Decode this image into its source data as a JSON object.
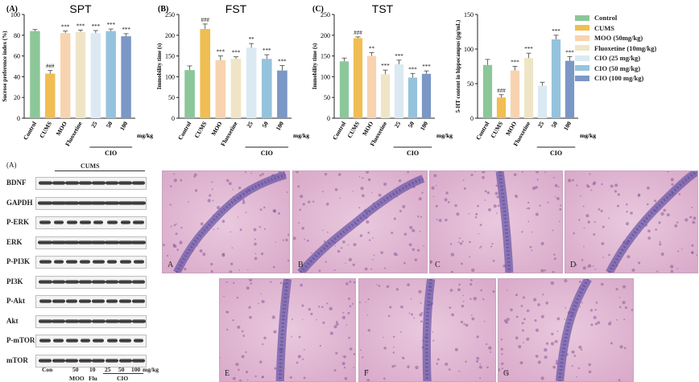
{
  "colors": {
    "Control": "#8cc79a",
    "CUMS": "#f0be52",
    "MOO": "#f8d3b0",
    "Fluoxetine": "#efe5c6",
    "CIO25": "#dbe9f3",
    "CIO50": "#95c3dd",
    "CIO100": "#7b97c6"
  },
  "legend": [
    {
      "label": "Control",
      "key": "Control"
    },
    {
      "label": "CUMS",
      "key": "CUMS"
    },
    {
      "label": "MOO (50mg/kg)",
      "key": "MOO"
    },
    {
      "label": "Fluoxetine (10mg/kg)",
      "key": "Fluoxetine"
    },
    {
      "label": "CIO (25 mg/kg)",
      "key": "CIO25"
    },
    {
      "label": "CIO (50 mg/kg)",
      "key": "CIO50"
    },
    {
      "label": "CIO (100 mg/kg)",
      "key": "CIO100"
    }
  ],
  "chart_data": [
    {
      "type": "bar",
      "panel": "(A)",
      "title": "SPT",
      "ylabel": "Sucrose preference index (%)",
      "ylim": [
        0,
        100
      ],
      "yticks": [
        0,
        20,
        40,
        60,
        80,
        100
      ],
      "categories": [
        "Control",
        "CUMS",
        "MOO",
        "Fluoxetine",
        "25",
        "50",
        "100"
      ],
      "values": [
        84,
        43,
        82,
        83,
        82,
        84,
        79
      ],
      "errors": [
        1.5,
        3,
        2,
        2,
        2.5,
        2,
        2.5
      ],
      "annotations": [
        "",
        "###",
        "***",
        "***",
        "***",
        "***",
        "***"
      ],
      "group_label": "CIO",
      "unit_label": "mg/kg"
    },
    {
      "type": "bar",
      "panel": "(B)",
      "title": "FST",
      "ylabel": "Immobility time (s)",
      "ylim": [
        0,
        250
      ],
      "yticks": [
        0,
        50,
        100,
        150,
        200,
        250
      ],
      "categories": [
        "Control",
        "CUMS",
        "MOO",
        "Fluoxetine",
        "25",
        "50",
        "100"
      ],
      "values": [
        116,
        215,
        140,
        143,
        170,
        143,
        115
      ],
      "errors": [
        10,
        12,
        10,
        5,
        10,
        10,
        12
      ],
      "annotations": [
        "",
        "###",
        "***",
        "***",
        "**",
        "***",
        "***"
      ],
      "group_label": "CIO",
      "unit_label": "mg/kg"
    },
    {
      "type": "bar",
      "panel": "(C)",
      "title": "TST",
      "ylabel": "Immobility time (s)",
      "ylim": [
        0,
        250
      ],
      "yticks": [
        0,
        50,
        100,
        150,
        200,
        250
      ],
      "categories": [
        "Control",
        "CUMS",
        "MOO",
        "Fluoxetine",
        "25",
        "50",
        "100"
      ],
      "values": [
        137,
        193,
        150,
        106,
        130,
        98,
        107
      ],
      "errors": [
        8,
        3,
        8,
        10,
        10,
        10,
        7
      ],
      "annotations": [
        "",
        "###",
        "**",
        "***",
        "***",
        "***",
        "***"
      ],
      "group_label": "CIO",
      "unit_label": "mg/kg"
    },
    {
      "type": "bar",
      "panel": "",
      "title": "",
      "ylabel": "5-HT content in hippocampus (pg/mL)",
      "ylim": [
        0,
        150
      ],
      "yticks": [
        0,
        50,
        100,
        150
      ],
      "categories": [
        "Control",
        "CUMS",
        "MOO",
        "Fluoxetine",
        "25",
        "50",
        "100"
      ],
      "values": [
        77,
        30,
        69,
        87,
        47,
        114,
        83
      ],
      "errors": [
        8,
        4,
        6,
        7,
        5,
        6,
        6
      ],
      "annotations": [
        "",
        "###",
        "***",
        "***",
        "",
        "***",
        "***"
      ],
      "group_label": "CIO",
      "unit_label": "mg/kg"
    }
  ],
  "western": {
    "panel": "(A)",
    "group_header": "CUMS",
    "rows": [
      "BDNF",
      "GAPDH",
      "P-ERK",
      "ERK",
      "P-PI3K",
      "PI3K",
      "P-Akt",
      "Akt",
      "P-mTOR",
      "mTOR"
    ],
    "doses": [
      "Con",
      "50",
      "10",
      "25",
      "50",
      "100"
    ],
    "dose_unit": "mg/kg",
    "groups": [
      "MOO",
      "Flu",
      "CIO"
    ]
  },
  "histology": [
    "A",
    "B",
    "C",
    "D",
    "E",
    "F",
    "G"
  ]
}
